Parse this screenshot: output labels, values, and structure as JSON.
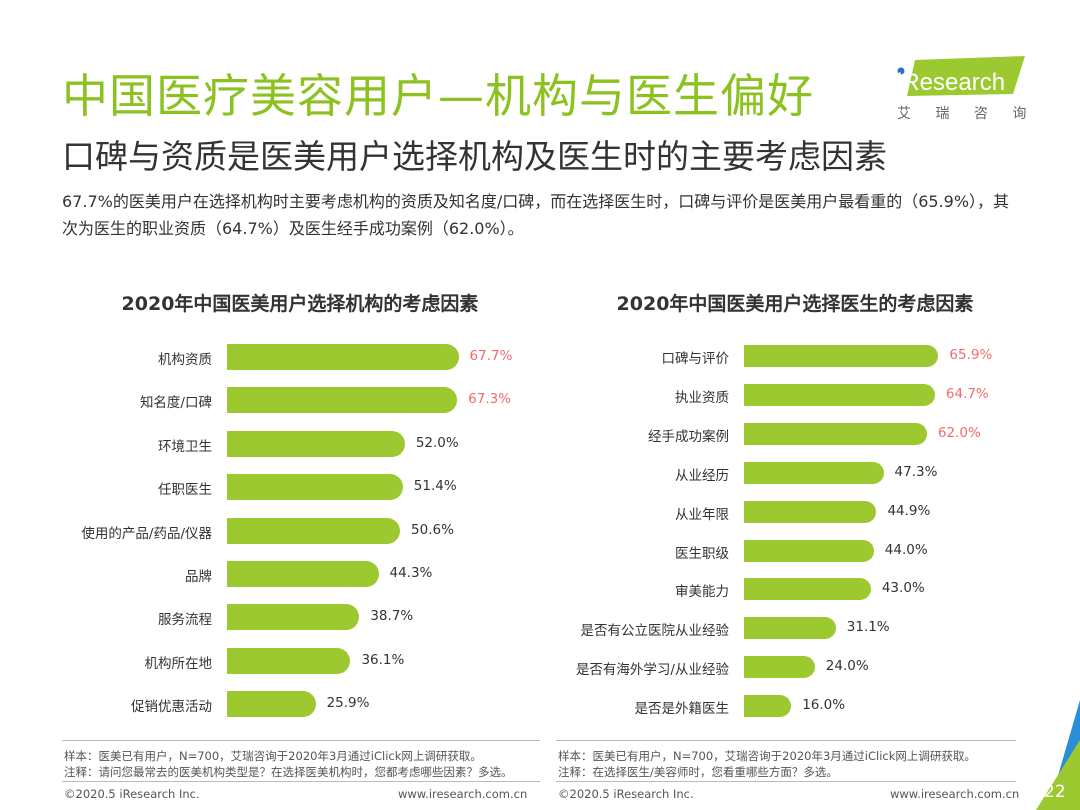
{
  "header": {
    "title": "中国医疗美容用户—机构与医生偏好",
    "subtitle": "口碑与资质是医美用户选择机构及医生时的主要考虑因素",
    "description": "67.7%的医美用户在选择机构时主要考虑机构的资质及知名度/口碑，而在选择医生时，口碑与评价是医美用户最看重的（65.9%），其次为医生的职业资质（64.7%）及医生经手成功案例（62.0%）。",
    "logo_text": "iResearch",
    "logo_cn": "艾 瑞 咨 询"
  },
  "colors": {
    "title": "#8cc21f",
    "bar": "#9bc92f",
    "highlight": "#f06b6b"
  },
  "chart_data": [
    {
      "type": "bar",
      "orientation": "horizontal",
      "title": "2020年中国医美用户选择机构的考虑因素",
      "categories": [
        "机构资质",
        "知名度/口碑",
        "环境卫生",
        "任职医生",
        "使用的产品/药品/仪器",
        "品牌",
        "服务流程",
        "机构所在地",
        "促销优惠活动"
      ],
      "values": [
        67.7,
        67.3,
        52.0,
        51.4,
        50.6,
        44.3,
        38.7,
        36.1,
        25.9
      ],
      "labels": [
        "67.7%",
        "67.3%",
        "52.0%",
        "51.4%",
        "50.6%",
        "44.3%",
        "38.7%",
        "36.1%",
        "25.9%"
      ],
      "highlighted": [
        0,
        1
      ],
      "unit": "%"
    },
    {
      "type": "bar",
      "orientation": "horizontal",
      "title": "2020年中国医美用户选择医生的考虑因素",
      "categories": [
        "口碑与评价",
        "执业资质",
        "经手成功案例",
        "从业经历",
        "从业年限",
        "医生职级",
        "审美能力",
        "是否有公立医院从业经验",
        "是否有海外学习/从业经验",
        "是否是外籍医生"
      ],
      "values": [
        65.9,
        64.7,
        62.0,
        47.3,
        44.9,
        44.0,
        43.0,
        31.1,
        24.0,
        16.0
      ],
      "labels": [
        "65.9%",
        "64.7%",
        "62.0%",
        "47.3%",
        "44.9%",
        "44.0%",
        "43.0%",
        "31.1%",
        "24.0%",
        "16.0%"
      ],
      "highlighted": [
        0,
        1,
        2
      ],
      "unit": "%"
    }
  ],
  "notes": {
    "left_sample": "样本：医美已有用户，N=700，艾瑞咨询于2020年3月通过iClick网上调研获取。",
    "left_note": "注释：请问您最常去的医美机构类型是？在选择医美机构时，您都考虑哪些因素？多选。",
    "right_sample": "样本：医美已有用户，N=700，艾瑞咨询于2020年3月通过iClick网上调研获取。",
    "right_note": "注释：在选择医生/美容师时，您看重哪些方面？多选。"
  },
  "footer": {
    "copyright_left": "©2020.5 iResearch Inc.",
    "url_left": "www.iresearch.com.cn",
    "copyright_right": "©2020.5 iResearch Inc.",
    "url_right": "www.iresearch.com.cn",
    "page_number": "22"
  }
}
